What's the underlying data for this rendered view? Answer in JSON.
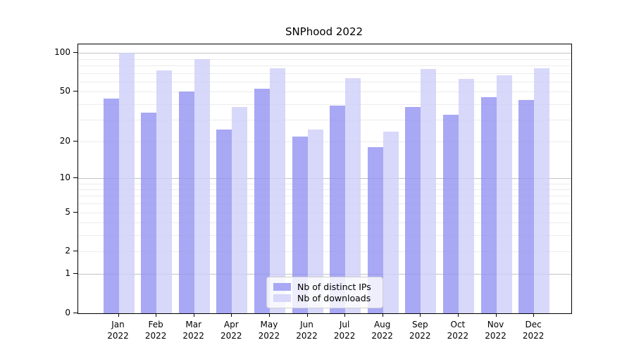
{
  "chart_data": {
    "type": "bar",
    "title": "SNPhood 2022",
    "categories": [
      "Jan",
      "Feb",
      "Mar",
      "Apr",
      "May",
      "Jun",
      "Jul",
      "Aug",
      "Sep",
      "Oct",
      "Nov",
      "Dec"
    ],
    "year": "2022",
    "series": [
      {
        "name": "Nb of distinct IPs",
        "values": [
          44,
          34,
          50,
          25,
          53,
          22,
          39,
          18,
          38,
          33,
          45,
          43
        ],
        "color": "rgba(146,146,243,0.8)",
        "legend_color": "#a8a8f5"
      },
      {
        "name": "Nb of downloads",
        "values": [
          100,
          73,
          90,
          38,
          76,
          25,
          64,
          24,
          75,
          63,
          67,
          76
        ],
        "color": "rgba(206,206,249,0.8)",
        "legend_color": "#d8d8fa"
      }
    ],
    "xlabel": "",
    "ylabel": "",
    "y_scale": "log1p",
    "ylim": [
      0,
      117
    ],
    "y_tick_values": [
      100,
      50,
      20,
      10,
      5,
      2,
      1,
      0
    ],
    "grid_minor_values": [
      2,
      3,
      4,
      5,
      6,
      7,
      8,
      9,
      20,
      30,
      40,
      50,
      60,
      70,
      80,
      90
    ],
    "grid_major_values": [
      1,
      10,
      100
    ],
    "grid": true,
    "legend_position": "lower center"
  },
  "colors": {
    "axis": "#000000",
    "grid_minor": "#ececec",
    "grid_major": "#c3c3c3",
    "legend_border": "#cfcfcf"
  }
}
